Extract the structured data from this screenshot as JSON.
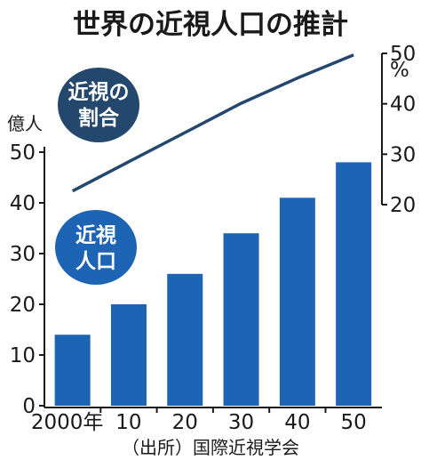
{
  "chart_data": {
    "type": "bar+line",
    "title": "世界の近視人口の推計",
    "categories": [
      "2000年",
      "10",
      "20",
      "30",
      "40",
      "50"
    ],
    "series": [
      {
        "name": "近視人口",
        "type": "bar",
        "axis": "left",
        "values": [
          14,
          20,
          26,
          34,
          41,
          48
        ]
      },
      {
        "name": "近視の割合",
        "type": "line",
        "axis": "right",
        "values": [
          22.7,
          28.5,
          34.3,
          40.1,
          45.1,
          49.7
        ]
      }
    ],
    "left_axis": {
      "unit_label": "億人",
      "ylim": [
        0,
        50
      ],
      "ticks": [
        "0",
        "10",
        "20",
        "30",
        "40",
        "50"
      ]
    },
    "right_axis": {
      "unit_label": "%",
      "ylim": [
        20,
        50
      ],
      "ticks": [
        "20",
        "30",
        "40",
        "50"
      ]
    },
    "bubbles": {
      "line_label": [
        "近視の",
        "割合"
      ],
      "bar_label": [
        "近視",
        "人口"
      ]
    },
    "source": "（出所）国際近視学会",
    "colors": {
      "bar": "#1e64b4",
      "line": "#24476e",
      "bubble_line": "#24476e",
      "bubble_bar": "#1e64b4"
    },
    "grid": false
  }
}
